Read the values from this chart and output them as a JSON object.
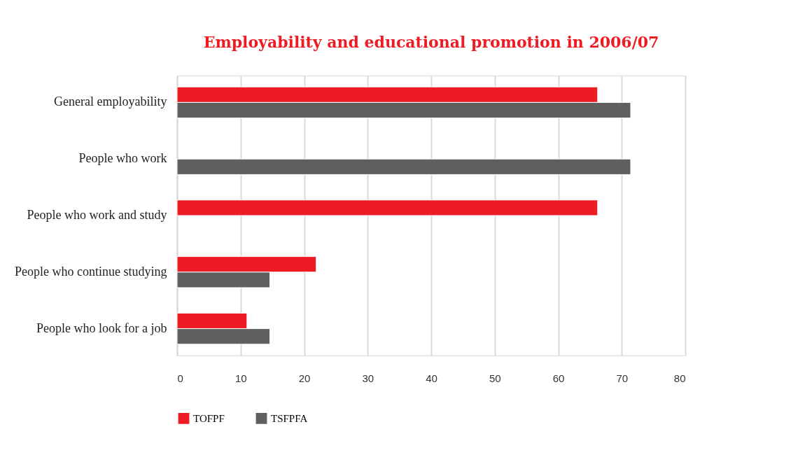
{
  "chart_data": {
    "type": "bar",
    "orientation": "horizontal",
    "title": "Employability and educational promotion in 2006/07",
    "categories": [
      "General employability",
      "People who work",
      "People who work and study",
      "People who continue studying",
      "People who look for a job"
    ],
    "series": [
      {
        "name": "TOFPF",
        "color": "#ed1c24",
        "values": [
          66.2,
          null,
          66.2,
          21.9,
          11.0
        ]
      },
      {
        "name": "TSFPFA",
        "color": "#5f5f5f",
        "values": [
          71.4,
          71.4,
          null,
          14.6,
          14.6
        ]
      }
    ],
    "xlim": [
      0,
      80
    ],
    "xticks": [
      0,
      10,
      20,
      30,
      40,
      50,
      60,
      70,
      80
    ],
    "grid": "x",
    "legend": "bottom"
  }
}
